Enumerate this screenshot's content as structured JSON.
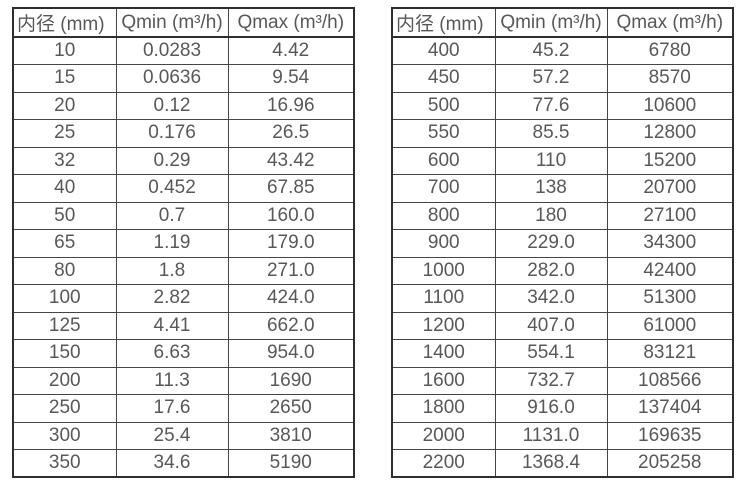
{
  "colors": {
    "background": "#ffffff",
    "text": "#58585a",
    "border_outer": "#2e2e2e",
    "border_inner": "#454545"
  },
  "tables": [
    {
      "name": "small-diameters",
      "headers": [
        "内径 (mm)",
        "Qmin (m³/h)",
        "Qmax (m³/h)"
      ],
      "rows": [
        [
          "10",
          "0.0283",
          "4.42"
        ],
        [
          "15",
          "0.0636",
          "9.54"
        ],
        [
          "20",
          "0.12",
          "16.96"
        ],
        [
          "25",
          "0.176",
          "26.5"
        ],
        [
          "32",
          "0.29",
          "43.42"
        ],
        [
          "40",
          "0.452",
          "67.85"
        ],
        [
          "50",
          "0.7",
          "160.0"
        ],
        [
          "65",
          "1.19",
          "179.0"
        ],
        [
          "80",
          "1.8",
          "271.0"
        ],
        [
          "100",
          "2.82",
          "424.0"
        ],
        [
          "125",
          "4.41",
          "662.0"
        ],
        [
          "150",
          "6.63",
          "954.0"
        ],
        [
          "200",
          "11.3",
          "1690"
        ],
        [
          "250",
          "17.6",
          "2650"
        ],
        [
          "300",
          "25.4",
          "3810"
        ],
        [
          "350",
          "34.6",
          "5190"
        ]
      ]
    },
    {
      "name": "large-diameters",
      "headers": [
        "内径 (mm)",
        "Qmin (m³/h)",
        "Qmax (m³/h)"
      ],
      "rows": [
        [
          "400",
          "45.2",
          "6780"
        ],
        [
          "450",
          "57.2",
          "8570"
        ],
        [
          "500",
          "77.6",
          "10600"
        ],
        [
          "550",
          "85.5",
          "12800"
        ],
        [
          "600",
          "110",
          "15200"
        ],
        [
          "700",
          "138",
          "20700"
        ],
        [
          "800",
          "180",
          "27100"
        ],
        [
          "900",
          "229.0",
          "34300"
        ],
        [
          "1000",
          "282.0",
          "42400"
        ],
        [
          "1100",
          "342.0",
          "51300"
        ],
        [
          "1200",
          "407.0",
          "61000"
        ],
        [
          "1400",
          "554.1",
          "83121"
        ],
        [
          "1600",
          "732.7",
          "108566"
        ],
        [
          "1800",
          "916.0",
          "137404"
        ],
        [
          "2000",
          "1131.0",
          "169635"
        ],
        [
          "2200",
          "1368.4",
          "205258"
        ]
      ]
    }
  ]
}
